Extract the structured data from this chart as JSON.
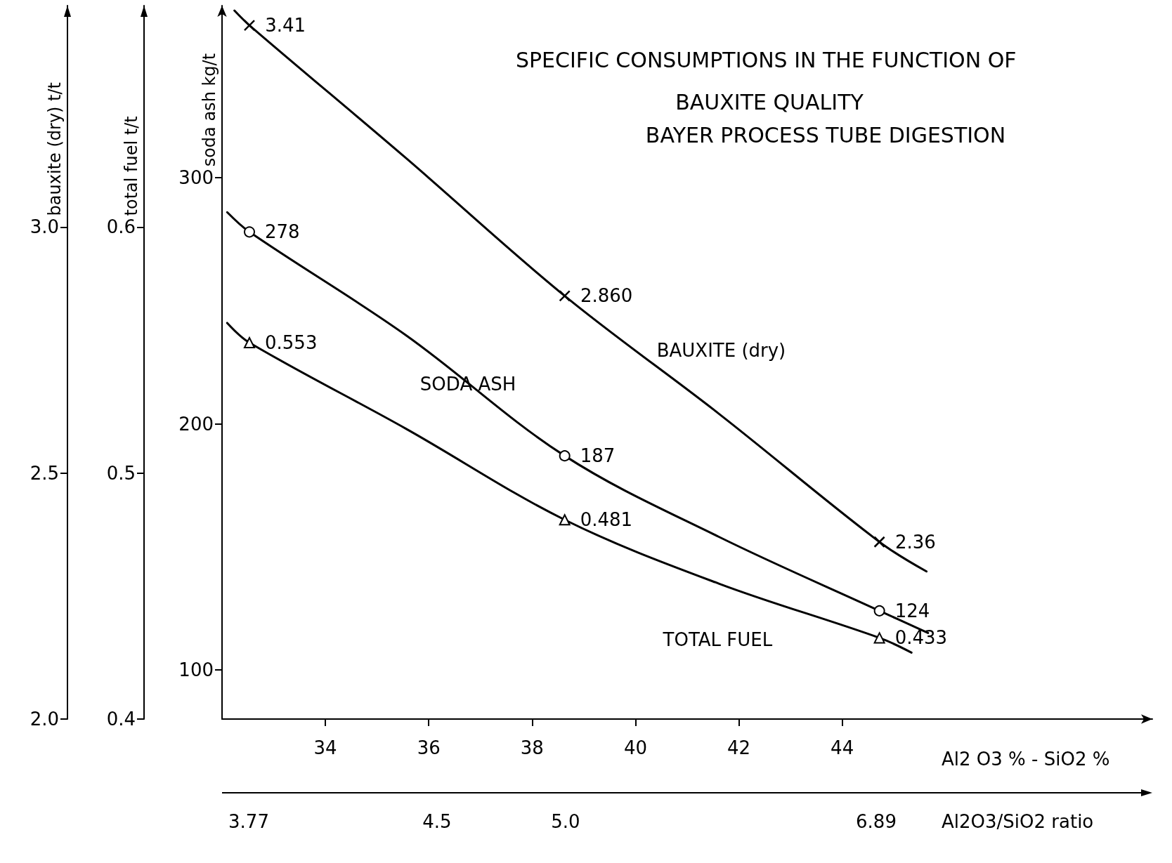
{
  "chart_data": {
    "type": "line",
    "title": "SPECIFIC CONSUMPTIONS IN THE FUNCTION OF BAUXITE QUALITY",
    "subtitle": "BAYER PROCESS TUBE DIGESTION",
    "xlabel": "Al2 O3 % - SiO2 %",
    "ylabel": "soda ash kg/t",
    "y2label": "total fuel t/t",
    "y3label": "bauxite (dry) t/t",
    "xlim": [
      32,
      50
    ],
    "xticks": [
      34,
      36,
      38,
      40,
      42,
      44
    ],
    "annotations": [
      "3.77",
      "4.5",
      "5.0",
      "6.89",
      "Al2O3/SiO2 ratio"
    ],
    "ylim": [
      80,
      370
    ],
    "yticks": [
      100,
      200,
      300
    ],
    "y2lim": [
      0.4,
      0.69
    ],
    "y2ticks": [
      {
        "value": 0.4,
        "label": "0.4"
      },
      {
        "value": 0.5,
        "label": "0.5"
      },
      {
        "value": 0.6,
        "label": "0.6"
      }
    ],
    "y3lim": [
      2.0,
      3.45
    ],
    "y3ticks": [
      {
        "value": 2.0,
        "label": "2.0"
      },
      {
        "value": 2.5,
        "label": "2.5"
      },
      {
        "value": 3.0,
        "label": "3.0"
      }
    ],
    "grid": false,
    "legend": false,
    "line_style": "solid",
    "series": [
      {
        "name": "BAUXITE (dry)",
        "axis": "y3",
        "color": "#000000",
        "marker": "none",
        "x": [
          32.24,
          32.53,
          35.56,
          38.63,
          41.62,
          44.72,
          45.63
        ],
        "values": [
          3.44,
          3.41,
          3.14,
          2.86,
          2.62,
          2.36,
          2.3
        ]
      },
      {
        "name": "SODA ASH",
        "axis": "y",
        "color": "#000000",
        "marker": "none",
        "x": [
          32.1,
          32.53,
          35.56,
          38.63,
          41.62,
          44.72,
          45.66
        ],
        "values": [
          286,
          278,
          236,
          187,
          154,
          124,
          115
        ]
      },
      {
        "name": "TOTAL FUEL",
        "axis": "y2",
        "color": "#000000",
        "marker": "none",
        "x": [
          32.1,
          32.53,
          35.56,
          38.63,
          41.62,
          44.72,
          45.34
        ],
        "values": [
          0.561,
          0.553,
          0.518,
          0.481,
          0.455,
          0.433,
          0.427
        ]
      },
      {
        "type": "scatter",
        "axis": "y3",
        "color": "#000000",
        "marker": "cross",
        "x": [
          32.53,
          38.63,
          44.72
        ],
        "values": [
          3.41,
          2.86,
          2.36
        ],
        "value_labels": [
          "3.41",
          "2.860",
          "2.36"
        ]
      },
      {
        "type": "scatter",
        "axis": "y",
        "color": "#000000",
        "marker": "circle",
        "x": [
          32.53,
          38.63,
          44.72
        ],
        "values": [
          278,
          187,
          124
        ],
        "value_labels": [
          "278",
          "187",
          "124"
        ]
      },
      {
        "type": "scatter",
        "axis": "y2",
        "color": "#000000",
        "marker": "triangle",
        "x": [
          32.53,
          38.63,
          44.72
        ],
        "values": [
          0.553,
          0.481,
          0.433
        ],
        "value_labels": [
          "0.553",
          "0.481",
          "0.433"
        ]
      }
    ]
  }
}
